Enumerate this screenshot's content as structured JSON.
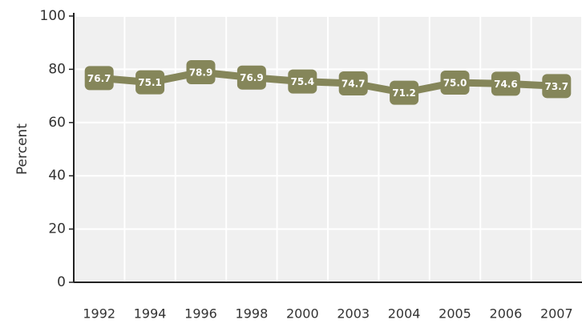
{
  "chart_data": {
    "type": "line",
    "y_label": "Percent",
    "categories": [
      "1992",
      "1994",
      "1996",
      "1998",
      "2000",
      "2003",
      "2004",
      "2005",
      "2006",
      "2007"
    ],
    "values": [
      76.7,
      75.1,
      78.9,
      76.9,
      75.4,
      74.7,
      71.2,
      75.0,
      74.6,
      73.7
    ],
    "value_labels": [
      "76.7",
      "75.1",
      "78.9",
      "76.9",
      "75.4",
      "74.7",
      "71.2",
      "75.0",
      "74.6",
      "73.7"
    ],
    "color": "#85865a",
    "ylim": [
      0,
      100
    ],
    "yticks": [
      0,
      20,
      40,
      60,
      80,
      100
    ],
    "grid": true
  }
}
